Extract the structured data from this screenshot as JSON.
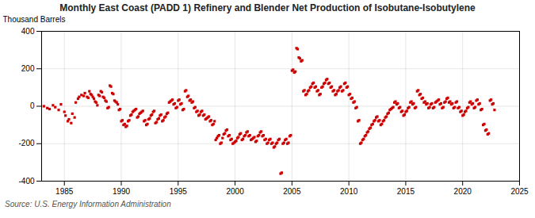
{
  "chart_data": {
    "type": "scatter",
    "title": "Monthly East Coast (PADD 1) Refinery and Blender Net Production of Isobutane-Isobutylene",
    "ylabel": "Thousand Barrels",
    "source": "Source: U.S. Energy Information Administration",
    "color": "#cc0000",
    "marker": "square",
    "grid": true,
    "xlim": [
      1983,
      2025
    ],
    "ylim": [
      -400,
      400
    ],
    "xticks": [
      1985,
      1990,
      1995,
      2000,
      2005,
      2010,
      2015,
      2020,
      2025
    ],
    "yticks": [
      -400,
      -200,
      0,
      200,
      400
    ],
    "x": [
      1983.2,
      1983.5,
      1983.7,
      1984.0,
      1984.2,
      1984.5,
      1984.7,
      1985.0,
      1985.1,
      1985.3,
      1985.4,
      1985.6,
      1985.7,
      1985.9,
      1986.0,
      1986.2,
      1986.3,
      1986.5,
      1986.7,
      1986.8,
      1987.0,
      1987.1,
      1987.2,
      1987.3,
      1987.4,
      1987.5,
      1987.6,
      1987.7,
      1987.8,
      1987.9,
      1988.0,
      1988.1,
      1988.2,
      1988.3,
      1988.4,
      1988.5,
      1988.6,
      1988.7,
      1988.8,
      1988.9,
      1989.0,
      1989.1,
      1989.2,
      1989.3,
      1989.4,
      1989.5,
      1989.6,
      1989.7,
      1989.8,
      1989.9,
      1990.0,
      1990.1,
      1990.2,
      1990.3,
      1990.4,
      1990.5,
      1990.6,
      1990.7,
      1990.8,
      1990.9,
      1991.0,
      1991.1,
      1991.2,
      1991.3,
      1991.4,
      1991.5,
      1991.6,
      1991.7,
      1991.8,
      1991.9,
      1992.0,
      1992.1,
      1992.2,
      1992.3,
      1992.4,
      1992.5,
      1992.6,
      1992.7,
      1992.8,
      1992.9,
      1993.0,
      1993.1,
      1993.2,
      1993.3,
      1993.4,
      1993.5,
      1993.6,
      1993.7,
      1993.8,
      1993.9,
      1994.0,
      1994.1,
      1994.2,
      1994.3,
      1994.4,
      1994.5,
      1994.6,
      1994.7,
      1994.8,
      1994.9,
      1995.0,
      1995.1,
      1995.2,
      1995.3,
      1995.4,
      1995.5,
      1995.6,
      1995.7,
      1995.8,
      1995.9,
      1996.0,
      1996.1,
      1996.2,
      1996.3,
      1996.4,
      1996.5,
      1996.6,
      1996.7,
      1996.8,
      1996.9,
      1997.0,
      1997.1,
      1997.2,
      1997.3,
      1997.4,
      1997.5,
      1997.6,
      1997.7,
      1997.8,
      1997.9,
      1998.0,
      1998.1,
      1998.2,
      1998.3,
      1998.4,
      1998.5,
      1998.6,
      1998.7,
      1998.8,
      1998.9,
      1999.0,
      1999.1,
      1999.2,
      1999.3,
      1999.4,
      1999.5,
      1999.6,
      1999.7,
      1999.8,
      1999.9,
      2000.0,
      2000.1,
      2000.2,
      2000.3,
      2000.4,
      2000.5,
      2000.6,
      2000.7,
      2000.8,
      2000.9,
      2001.0,
      2001.1,
      2001.2,
      2001.3,
      2001.4,
      2001.5,
      2001.6,
      2001.7,
      2001.8,
      2001.9,
      2002.0,
      2002.1,
      2002.2,
      2002.3,
      2002.4,
      2002.5,
      2002.6,
      2002.7,
      2002.8,
      2002.9,
      2003.0,
      2003.1,
      2003.2,
      2003.3,
      2003.4,
      2003.5,
      2003.6,
      2003.7,
      2003.8,
      2003.9,
      2004.0,
      2004.1,
      2004.2,
      2004.3,
      2004.4,
      2004.5,
      2004.6,
      2004.7,
      2004.8,
      2004.9,
      2005.0,
      2005.1,
      2005.2,
      2005.3,
      2005.4,
      2005.5,
      2005.6,
      2005.7,
      2005.8,
      2005.9,
      2006.0,
      2006.1,
      2006.2,
      2006.3,
      2006.4,
      2006.5,
      2006.6,
      2006.7,
      2006.8,
      2006.9,
      2007.0,
      2007.1,
      2007.2,
      2007.3,
      2007.4,
      2007.5,
      2007.6,
      2007.7,
      2007.8,
      2007.9,
      2008.0,
      2008.1,
      2008.2,
      2008.3,
      2008.4,
      2008.5,
      2008.6,
      2008.7,
      2008.8,
      2008.9,
      2009.0,
      2009.1,
      2009.2,
      2009.3,
      2009.4,
      2009.5,
      2009.6,
      2009.7,
      2009.8,
      2009.9,
      2010.0,
      2010.1,
      2010.2,
      2010.3,
      2010.4,
      2010.5,
      2010.6,
      2010.7,
      2010.8,
      2010.9,
      2011.0,
      2011.1,
      2011.2,
      2011.3,
      2011.4,
      2011.5,
      2011.6,
      2011.7,
      2011.8,
      2011.9,
      2012.0,
      2012.1,
      2012.2,
      2012.3,
      2012.4,
      2012.5,
      2012.6,
      2012.7,
      2012.8,
      2012.9,
      2013.0,
      2013.1,
      2013.2,
      2013.3,
      2013.4,
      2013.5,
      2013.6,
      2013.7,
      2013.8,
      2013.9,
      2014.0,
      2014.1,
      2014.2,
      2014.3,
      2014.4,
      2014.5,
      2014.6,
      2014.7,
      2014.8,
      2014.9,
      2015.0,
      2015.1,
      2015.2,
      2015.3,
      2015.4,
      2015.5,
      2015.6,
      2015.7,
      2015.8,
      2015.9,
      2016.0,
      2016.1,
      2016.2,
      2016.3,
      2016.4,
      2016.5,
      2016.6,
      2016.7,
      2016.8,
      2016.9,
      2017.0,
      2017.1,
      2017.2,
      2017.3,
      2017.4,
      2017.5,
      2017.6,
      2017.7,
      2017.8,
      2017.9,
      2018.0,
      2018.1,
      2018.2,
      2018.3,
      2018.4,
      2018.5,
      2018.6,
      2018.7,
      2018.8,
      2018.9,
      2019.0,
      2019.1,
      2019.2,
      2019.3,
      2019.4,
      2019.5,
      2019.6,
      2019.7,
      2019.8,
      2019.9,
      2020.0,
      2020.1,
      2020.2,
      2020.3,
      2020.4,
      2020.5,
      2020.6,
      2020.7,
      2020.8,
      2020.9,
      2021.0,
      2021.1,
      2021.2,
      2021.3,
      2021.4,
      2021.5,
      2021.6,
      2021.7,
      2021.8,
      2021.9,
      2022.0,
      2022.1,
      2022.2,
      2022.3,
      2022.4,
      2022.5,
      2022.6,
      2022.7,
      2022.8
    ],
    "values": [
      0,
      -10,
      -15,
      5,
      -5,
      -20,
      10,
      -30,
      -50,
      -80,
      -70,
      -90,
      -40,
      -60,
      20,
      40,
      50,
      60,
      55,
      70,
      50,
      45,
      80,
      65,
      60,
      50,
      40,
      25,
      20,
      5,
      60,
      55,
      80,
      75,
      50,
      45,
      30,
      25,
      -10,
      -5,
      110,
      105,
      70,
      65,
      30,
      25,
      20,
      10,
      -20,
      -15,
      -80,
      -75,
      -100,
      -95,
      -110,
      -105,
      -80,
      -75,
      -50,
      -45,
      -30,
      -25,
      -20,
      -15,
      -60,
      -55,
      -40,
      -35,
      -30,
      -25,
      -80,
      -75,
      -100,
      -95,
      -70,
      -65,
      -50,
      -45,
      -30,
      -25,
      -90,
      -85,
      -70,
      -65,
      -50,
      -45,
      -80,
      -75,
      -60,
      -55,
      -40,
      -35,
      20,
      25,
      30,
      35,
      10,
      15,
      -10,
      -5,
      30,
      35,
      10,
      15,
      -20,
      -15,
      80,
      85,
      50,
      55,
      30,
      35,
      20,
      25,
      -10,
      -5,
      -30,
      -25,
      -50,
      -45,
      -30,
      -25,
      -50,
      -45,
      -70,
      -65,
      -60,
      -55,
      -80,
      -75,
      -100,
      -95,
      -80,
      -180,
      -170,
      -160,
      -155,
      -200,
      -195,
      -170,
      -150,
      -145,
      -130,
      -125,
      -160,
      -155,
      -180,
      -175,
      -200,
      -195,
      -190,
      -185,
      -170,
      -165,
      -150,
      -145,
      -180,
      -175,
      -160,
      -155,
      -140,
      -135,
      -160,
      -155,
      -180,
      -175,
      -170,
      -165,
      -190,
      -185,
      -160,
      -155,
      -140,
      -135,
      -160,
      -155,
      -180,
      -175,
      -200,
      -195,
      -180,
      -175,
      -200,
      -195,
      -220,
      -215,
      -200,
      -195,
      -180,
      -175,
      -360,
      -355,
      -200,
      -195,
      -180,
      -175,
      -200,
      -195,
      -160,
      -155,
      190,
      195,
      180,
      185,
      310,
      305,
      260,
      255,
      240,
      245,
      80,
      85,
      60,
      65,
      80,
      85,
      100,
      105,
      120,
      125,
      100,
      105,
      80,
      85,
      60,
      65,
      100,
      105,
      120,
      125,
      140,
      145,
      120,
      125,
      100,
      105,
      80,
      85,
      60,
      65,
      80,
      85,
      100,
      105,
      80,
      85,
      120,
      125,
      100,
      105,
      60,
      65,
      40,
      45,
      20,
      25,
      -10,
      -5,
      -80,
      -75,
      -200,
      -195,
      -180,
      -175,
      -160,
      -155,
      -140,
      -135,
      -120,
      -115,
      -100,
      -95,
      -80,
      -75,
      -60,
      -55,
      -80,
      -75,
      -100,
      -95,
      -80,
      -75,
      -60,
      -55,
      -40,
      -35,
      -20,
      -15,
      -10,
      -5,
      20,
      25,
      10,
      15,
      -10,
      -5,
      -30,
      -25,
      -50,
      -45,
      -30,
      -25,
      -10,
      -5,
      20,
      25,
      10,
      15,
      -10,
      -5,
      80,
      85,
      60,
      65,
      40,
      45,
      20,
      25,
      10,
      15,
      -10,
      -5,
      10,
      15,
      -10,
      -5,
      20,
      25,
      30,
      35,
      10,
      15,
      -10,
      -5,
      20,
      25,
      40,
      45,
      20,
      25,
      10,
      15,
      -10,
      -5,
      20,
      25,
      -10,
      -5,
      -30,
      -25,
      -50,
      -45,
      -30,
      -25,
      -10,
      -5,
      20,
      25,
      10,
      15,
      -10,
      -5,
      30,
      35,
      10,
      15,
      -20,
      -15,
      -100,
      -95,
      -130,
      -125,
      -150,
      -145,
      30,
      35,
      10,
      15,
      -20
    ]
  }
}
